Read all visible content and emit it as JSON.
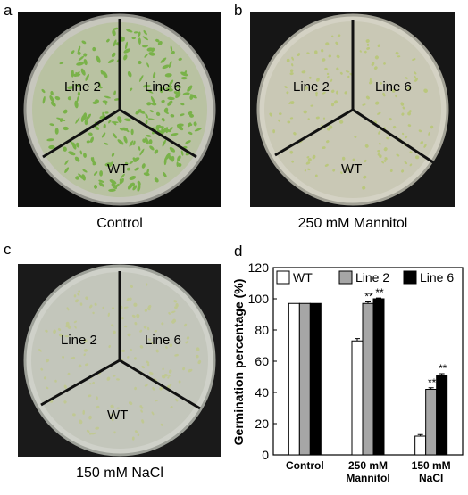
{
  "panels": {
    "a": {
      "letter": "a",
      "caption": "Control",
      "labels": {
        "line2": "Line 2",
        "line6": "Line 6",
        "wt": "WT"
      }
    },
    "b": {
      "letter": "b",
      "caption": "250 mM Mannitol",
      "labels": {
        "line2": "Line 2",
        "line6": "Line 6",
        "wt": "WT"
      }
    },
    "c": {
      "letter": "c",
      "caption": "150 mM NaCl",
      "labels": {
        "line2": "Line 2",
        "line6": "Line 6",
        "wt": "WT"
      }
    },
    "d": {
      "letter": "d"
    }
  },
  "colors": {
    "wt": "#ffffff",
    "line2": "#a6a6a6",
    "line6": "#000000"
  },
  "chart_data": {
    "type": "bar",
    "title": "",
    "ylabel": "Germination percentage (%)",
    "xlabel": "",
    "ylim": [
      0,
      120
    ],
    "yticks": [
      "0",
      "20",
      "40",
      "60",
      "80",
      "100",
      "120"
    ],
    "categories": [
      [
        "Control"
      ],
      [
        "250 mM",
        "Mannitol"
      ],
      [
        "150 mM",
        "NaCl"
      ]
    ],
    "legend_position": "top",
    "series": [
      {
        "name": "WT",
        "values": [
          97,
          73,
          12
        ],
        "errors": [
          0,
          1.5,
          1
        ],
        "marks": [
          "",
          "",
          ""
        ]
      },
      {
        "name": "Line 2",
        "values": [
          97,
          97,
          42
        ],
        "errors": [
          0,
          1,
          1
        ],
        "marks": [
          "",
          "**",
          "**"
        ]
      },
      {
        "name": "Line 6",
        "values": [
          97,
          100,
          51
        ],
        "errors": [
          0,
          0.5,
          1
        ],
        "marks": [
          "",
          "**",
          "**"
        ]
      }
    ]
  }
}
